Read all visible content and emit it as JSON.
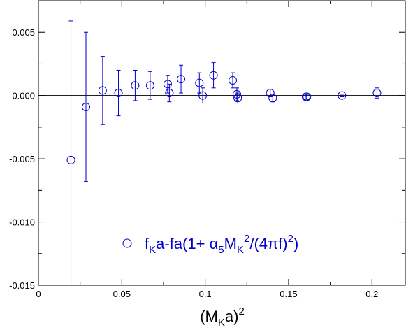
{
  "chart_data": {
    "type": "scatter",
    "title": "",
    "xlabel": "(M_K a)^2",
    "ylabel": "",
    "xlim": [
      0,
      0.22
    ],
    "ylim": [
      -0.015,
      0.0075
    ],
    "x_ticks": [
      0,
      0.05,
      0.1,
      0.15,
      0.2
    ],
    "x_tick_labels": [
      "0",
      "0.05",
      "0.1",
      "0.15",
      "0.2"
    ],
    "y_ticks": [
      -0.015,
      -0.01,
      -0.005,
      0.0,
      0.005
    ],
    "y_tick_labels": [
      "-0.015",
      "-0.010",
      "-0.005",
      "0.000",
      "0.005"
    ],
    "reference_line_y": 0,
    "grid": false,
    "legend_position": "bottom-center",
    "colors": {
      "series": "#0000cc",
      "axis": "#000000"
    },
    "series": [
      {
        "name": "f_K a - f a(1 + α_5 M_K^2/(4πf)^2)",
        "marker": "open-circle",
        "points": [
          {
            "x": 0.0195,
            "y": -0.0051,
            "err": 0.011
          },
          {
            "x": 0.0285,
            "y": -0.0009,
            "err": 0.0059
          },
          {
            "x": 0.0385,
            "y": 0.0004,
            "err": 0.0027
          },
          {
            "x": 0.048,
            "y": 0.0002,
            "err": 0.0018
          },
          {
            "x": 0.058,
            "y": 0.0008,
            "err": 0.0012
          },
          {
            "x": 0.067,
            "y": 0.0008,
            "err": 0.0011
          },
          {
            "x": 0.0775,
            "y": 0.0009,
            "err": 0.0007
          },
          {
            "x": 0.0785,
            "y": 0.0002,
            "err": 0.0007
          },
          {
            "x": 0.0855,
            "y": 0.0013,
            "err": 0.0011
          },
          {
            "x": 0.0965,
            "y": 0.001,
            "err": 0.0008
          },
          {
            "x": 0.0985,
            "y": 0.0,
            "err": 0.0006
          },
          {
            "x": 0.105,
            "y": 0.0016,
            "err": 0.001
          },
          {
            "x": 0.1165,
            "y": 0.0012,
            "err": 0.0006
          },
          {
            "x": 0.119,
            "y": 0.0001,
            "err": 0.0005
          },
          {
            "x": 0.1195,
            "y": -0.0002,
            "err": 0.0004
          },
          {
            "x": 0.139,
            "y": 0.0002,
            "err": 0.0003
          },
          {
            "x": 0.1405,
            "y": -0.0002,
            "err": 0.0003
          },
          {
            "x": 0.1605,
            "y": -0.0001,
            "err": 0.0002
          },
          {
            "x": 0.161,
            "y": -0.0001,
            "err": 0.0002
          },
          {
            "x": 0.182,
            "y": 0.0,
            "err": 0.0001
          },
          {
            "x": 0.203,
            "y": 0.0002,
            "err": 0.0004
          }
        ]
      }
    ]
  }
}
